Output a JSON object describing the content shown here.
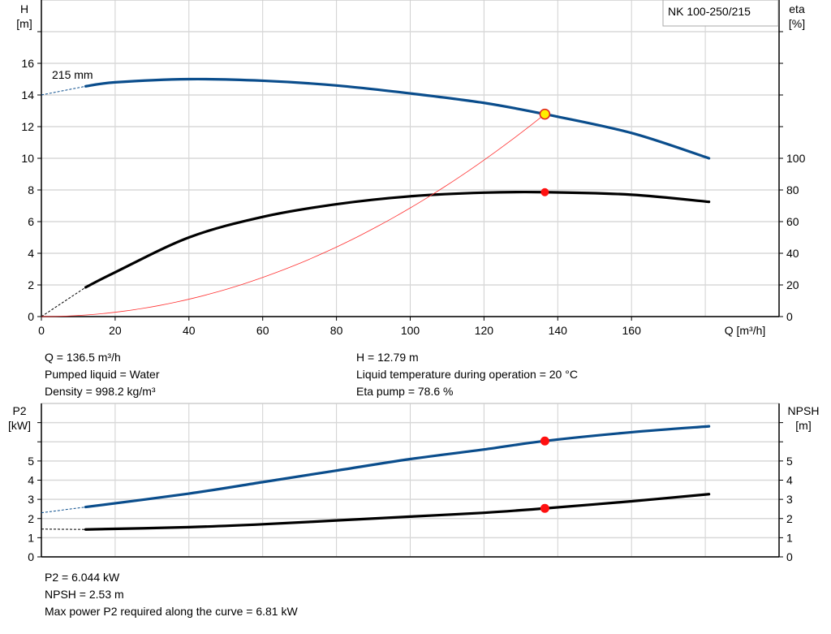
{
  "chart_data": [
    {
      "type": "line",
      "title": "NK 100-250/215",
      "xlabel": "Q [m³/h]",
      "ylabel": "H\n[m]",
      "y2label": "eta\n[%]",
      "xlim": [
        0,
        200
      ],
      "ylim": [
        0,
        20
      ],
      "y2lim": [
        0,
        200
      ],
      "grid": true,
      "xticks": [
        0,
        20,
        40,
        60,
        80,
        100,
        120,
        140,
        160
      ],
      "yticks": [
        0,
        2,
        4,
        6,
        8,
        10,
        12,
        14,
        16
      ],
      "y2ticks": [
        0,
        20,
        40,
        60,
        80,
        100
      ],
      "curve_label": "215 mm",
      "series": [
        {
          "key": "H",
          "color": "#0a4d8c",
          "axis": "left",
          "extrapolated": [
            [
              0,
              14
            ],
            [
              12,
              14.55
            ]
          ],
          "values": [
            [
              12,
              14.55
            ],
            [
              20,
              14.8
            ],
            [
              40,
              15.0
            ],
            [
              60,
              14.9
            ],
            [
              80,
              14.6
            ],
            [
              100,
              14.1
            ],
            [
              120,
              13.5
            ],
            [
              136.5,
              12.79
            ],
            [
              160,
              11.6
            ],
            [
              181,
              10.0
            ]
          ]
        },
        {
          "key": "eta",
          "color": "#000000",
          "axis": "right",
          "extrapolated": [
            [
              0,
              0
            ],
            [
              12,
              18.5
            ]
          ],
          "values": [
            [
              12,
              18.5
            ],
            [
              20,
              28
            ],
            [
              40,
              50
            ],
            [
              60,
              63
            ],
            [
              80,
              71
            ],
            [
              100,
              76
            ],
            [
              120,
              78.3
            ],
            [
              136.5,
              78.6
            ],
            [
              160,
              77
            ],
            [
              181,
              72.5
            ]
          ]
        },
        {
          "key": "system",
          "color": "#ff3030",
          "axis": "left",
          "type": "parabola",
          "values": [
            [
              0,
              0
            ],
            [
              136.5,
              12.79
            ]
          ]
        }
      ],
      "operating_point": {
        "Q": 136.5,
        "H": 12.79,
        "eta": 78.6
      }
    },
    {
      "type": "line",
      "xlabel": "",
      "ylabel": "P2\n[kW]",
      "y2label": "NPSH\n[m]",
      "xlim": [
        0,
        200
      ],
      "ylim": [
        0,
        8
      ],
      "y2lim": [
        0,
        8
      ],
      "grid": true,
      "yticks": [
        0,
        1,
        2,
        3,
        4,
        5
      ],
      "y2ticks": [
        0,
        1,
        2,
        3,
        4,
        5
      ],
      "series": [
        {
          "key": "P2",
          "color": "#0a4d8c",
          "extrapolated": [
            [
              0,
              2.3
            ],
            [
              12,
              2.6
            ]
          ],
          "values": [
            [
              12,
              2.6
            ],
            [
              40,
              3.3
            ],
            [
              60,
              3.9
            ],
            [
              80,
              4.5
            ],
            [
              100,
              5.1
            ],
            [
              120,
              5.6
            ],
            [
              136.5,
              6.044
            ],
            [
              160,
              6.5
            ],
            [
              181,
              6.81
            ]
          ]
        },
        {
          "key": "NPSH",
          "color": "#000000",
          "extrapolated": [
            [
              0,
              1.45
            ],
            [
              12,
              1.43
            ]
          ],
          "values": [
            [
              12,
              1.43
            ],
            [
              40,
              1.55
            ],
            [
              60,
              1.7
            ],
            [
              80,
              1.9
            ],
            [
              100,
              2.1
            ],
            [
              120,
              2.3
            ],
            [
              136.5,
              2.53
            ],
            [
              160,
              2.9
            ],
            [
              181,
              3.27
            ]
          ]
        }
      ],
      "operating_point": {
        "Q": 136.5,
        "P2": 6.044,
        "NPSH": 2.53
      }
    }
  ],
  "info_top": {
    "left": [
      "Q = 136.5 m³/h",
      "Pumped liquid = Water",
      "Density = 998.2 kg/m³"
    ],
    "right": [
      "H = 12.79 m",
      "Liquid temperature during operation = 20 °C",
      "Eta pump = 78.6 %"
    ]
  },
  "info_bottom": [
    "P2 = 6.044 kW",
    "NPSH = 2.53 m",
    "Max power P2 required along the curve = 6.81 kW"
  ]
}
